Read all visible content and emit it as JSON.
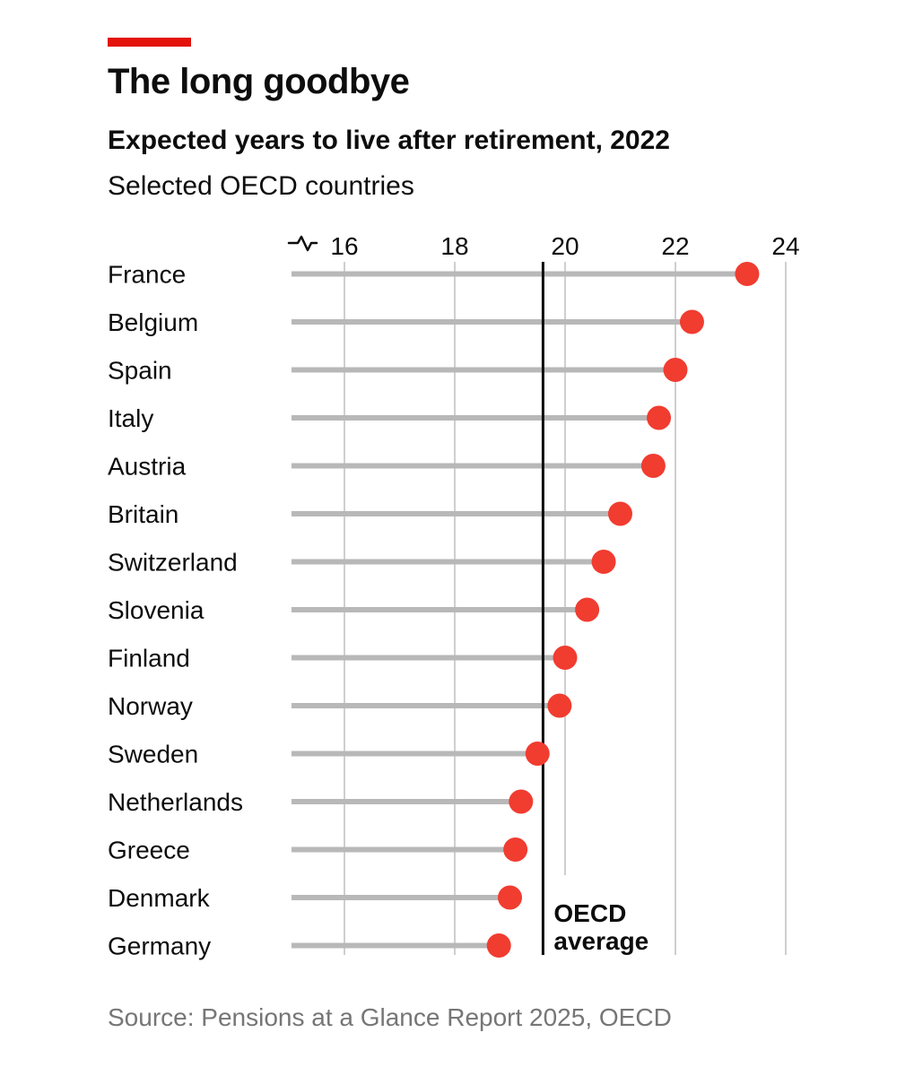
{
  "header": {
    "title": "The long goodbye",
    "subtitle": "Expected years to live after retirement, 2022",
    "dek": "Selected OECD countries",
    "accent_color": "#e3120b"
  },
  "chart_data": {
    "type": "scatter",
    "variant": "horizontal-lollipop-dot-plot",
    "title": "Expected years to live after retirement, 2022",
    "subtitle": "Selected OECD countries",
    "categories": [
      "France",
      "Belgium",
      "Spain",
      "Italy",
      "Austria",
      "Britain",
      "Switzerland",
      "Slovenia",
      "Finland",
      "Norway",
      "Sweden",
      "Netherlands",
      "Greece",
      "Denmark",
      "Germany"
    ],
    "values": [
      23.3,
      22.3,
      22.0,
      21.7,
      21.6,
      21.0,
      20.7,
      20.4,
      20.0,
      19.9,
      19.5,
      19.2,
      19.1,
      19.0,
      18.8
    ],
    "unit": "years",
    "x_ticks": [
      16,
      18,
      20,
      22,
      24
    ],
    "xlim": [
      15,
      24.4
    ],
    "axis_break_marker": true,
    "grid": "vertical",
    "legend": "none",
    "reference_line": {
      "value": 19.6,
      "label_lines": [
        "OECD",
        "average"
      ]
    }
  },
  "source": "Source: Pensions at a Glance Report 2025, OECD",
  "colors": {
    "background": "#ffffff",
    "text": "#0d0d0d",
    "dot": "#f13c30",
    "stem": "#b8b8b8",
    "grid": "#cfcfcf",
    "reference_line": "#0d0d0d",
    "source_text": "#767676"
  }
}
